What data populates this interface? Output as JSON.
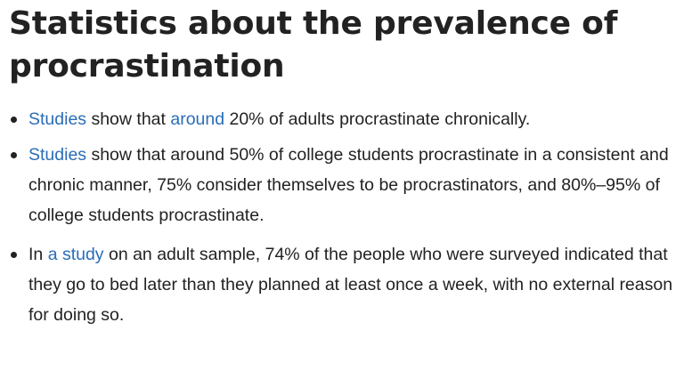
{
  "article": {
    "title": "Statistics about the prevalence of procrastination",
    "items": [
      {
        "parts": [
          "",
          "Studies",
          " show that ",
          "around",
          " 20% of adults procrastinate chronically."
        ]
      },
      {
        "parts": [
          "",
          "Studies",
          " show that around 50% of college students procrastinate in a consistent and chronic manner, 75% consider themselves to be procrastinators, and 80%–95% of college students procrastinate."
        ]
      },
      {
        "parts": [
          "In ",
          "a study",
          " on an adult sample, 74% of the people who were surveyed indicated that they go to bed later than they planned at least once a week, with no external reason for doing so."
        ]
      }
    ]
  },
  "colors": {
    "text": "#222222",
    "link": "#2a6db8",
    "background": "#ffffff"
  }
}
